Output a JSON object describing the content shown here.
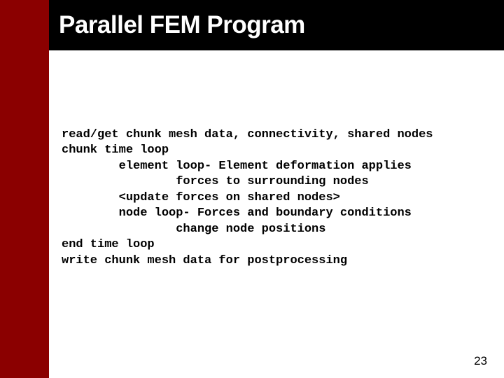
{
  "layout": {
    "sidebar_color": "#8b0000",
    "titlebar_color": "#000000",
    "background_color": "#ffffff"
  },
  "title": "Parallel FEM Program",
  "code_lines": [
    "read/get chunk mesh data, connectivity, shared nodes",
    "chunk time loop",
    "        element loop- Element deformation applies",
    "                forces to surrounding nodes",
    "        <update forces on shared nodes>",
    "        node loop- Forces and boundary conditions",
    "                change node positions",
    "end time loop",
    "write chunk mesh data for postprocessing"
  ],
  "page_number": "23",
  "typography": {
    "title_font": "Arial Black",
    "title_fontsize": 35,
    "title_color": "#ffffff",
    "code_font": "Courier New",
    "code_fontsize": 17,
    "code_weight": "bold",
    "code_color": "#000000",
    "pagenum_fontsize": 17
  }
}
